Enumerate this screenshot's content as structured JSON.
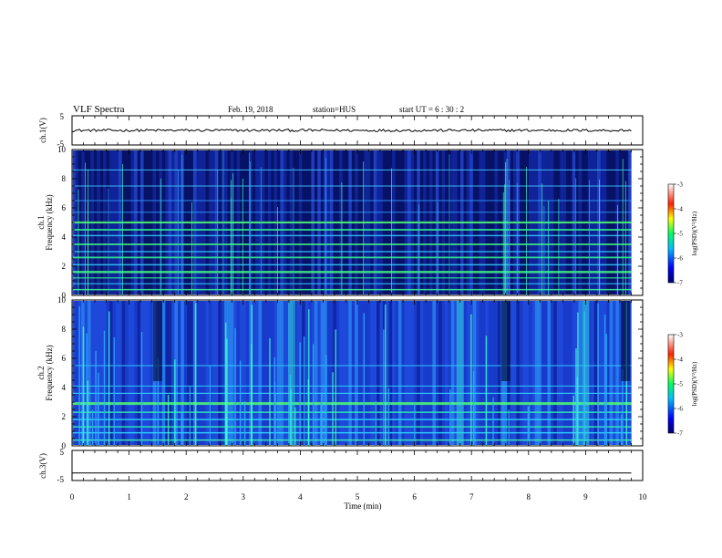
{
  "header": {
    "title": "VLF Spectra",
    "date": "Feb. 19, 2018",
    "station": "station=HUS",
    "start": "start  UT =   6  : 30 : 2"
  },
  "chart_data": [
    {
      "type": "line",
      "panel": "ch1-waveform",
      "ylabel": "ch.1(V)",
      "ylim": [
        -5,
        5
      ],
      "yticks": [
        "5",
        "-5"
      ],
      "xlim": [
        0,
        10
      ],
      "series": [
        {
          "x": [
            0,
            9.8
          ],
          "y": [
            0,
            0
          ]
        }
      ]
    },
    {
      "type": "heatmap",
      "panel": "ch1-spectrogram",
      "ylabel": "ch.1\nFrequency  (kHz)",
      "ylim": [
        0,
        10
      ],
      "yticks": [
        "0",
        "2",
        "4",
        "6",
        "8",
        "10"
      ],
      "xlim": [
        0,
        10
      ],
      "data_end_min": 9.8,
      "colorbar": {
        "label": "log(PSD)(V²/Hz)",
        "ticks": [
          "-3",
          "-4",
          "-5",
          "-6",
          "-7"
        ],
        "range": [
          -7,
          -3
        ]
      }
    },
    {
      "type": "heatmap",
      "panel": "ch2-spectrogram",
      "ylabel": "ch.2\nFrequency  (kHz)",
      "ylim": [
        0,
        10
      ],
      "yticks": [
        "0",
        "2",
        "4",
        "6",
        "8",
        "10"
      ],
      "xlim": [
        0,
        10
      ],
      "data_end_min": 9.8,
      "colorbar": {
        "label": "log(PSD)(V²/Hz)",
        "ticks": [
          "-3",
          "-4",
          "-5",
          "-6",
          "-7"
        ],
        "range": [
          -7,
          -3
        ]
      }
    },
    {
      "type": "line",
      "panel": "ch3-waveform",
      "ylabel": "ch.3(V)",
      "ylim": [
        -5,
        5
      ],
      "yticks": [
        "5",
        "-5"
      ],
      "xlim": [
        0,
        10
      ],
      "series": [
        {
          "x": [
            0,
            9.8
          ],
          "y": [
            -2.5,
            -2.5
          ]
        }
      ]
    }
  ],
  "xaxis": {
    "label": "Time  (min)",
    "ticks": [
      "0",
      "1",
      "2",
      "3",
      "4",
      "5",
      "6",
      "7",
      "8",
      "9",
      "10"
    ]
  }
}
